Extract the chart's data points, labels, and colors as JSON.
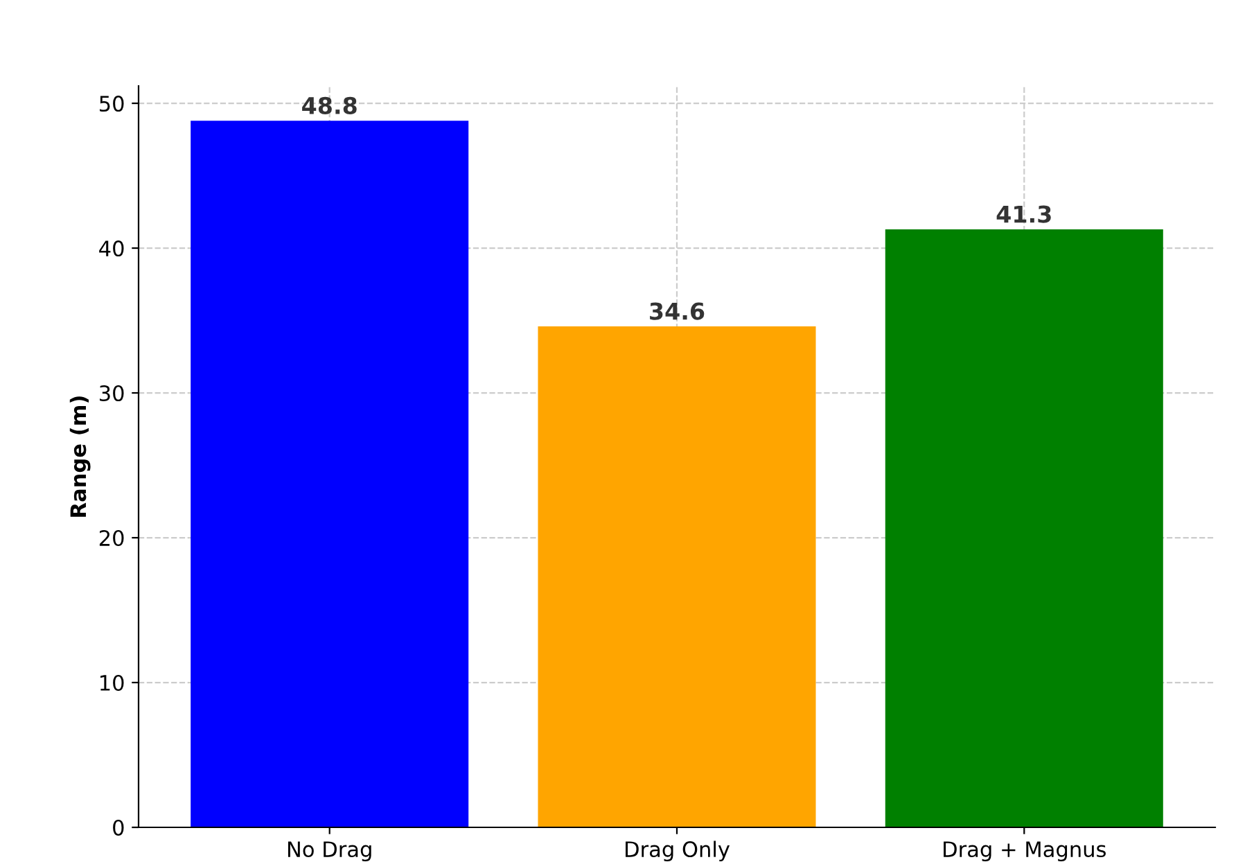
{
  "chart_data": {
    "type": "bar",
    "ylabel": "Range (m)",
    "categories": [
      "No Drag",
      "Drag Only",
      "Drag + Magnus"
    ],
    "values": [
      48.8,
      34.6,
      41.3
    ],
    "colors": [
      "#0000ff",
      "#ffa500",
      "#008000"
    ],
    "ylim": [
      0,
      51.2
    ],
    "yticks": [
      0,
      10,
      20,
      30,
      40,
      50
    ],
    "grid": true,
    "data_labels": true
  }
}
